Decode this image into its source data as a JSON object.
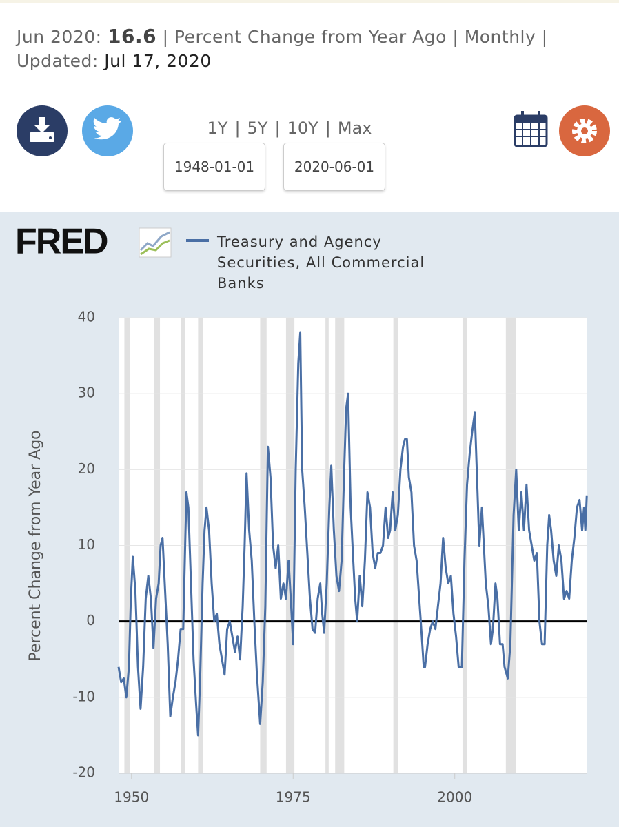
{
  "header": {
    "date_label": "Jun 2020:",
    "value": "16.6",
    "units": "| Percent Change from Year Ago | Monthly |",
    "updated_label": "Updated:",
    "updated": "Jul 17, 2020"
  },
  "range_links": [
    "1Y",
    "5Y",
    "10Y",
    "Max"
  ],
  "range_separator": "|",
  "start_date": "1948-01-01",
  "end_date": "2020-06-01",
  "logo": "FRED",
  "chart_data": {
    "type": "line",
    "y_label": "Percent Change from Year Ago",
    "x": [
      1948.0,
      1948.4,
      1948.8,
      1949.2,
      1949.6,
      1949.9,
      1950.2,
      1950.6,
      1951.0,
      1951.4,
      1951.8,
      1952.2,
      1952.6,
      1953.0,
      1953.4,
      1953.8,
      1954.2,
      1954.5,
      1954.8,
      1955.2,
      1955.6,
      1956.0,
      1956.4,
      1956.8,
      1957.2,
      1957.6,
      1958.0,
      1958.3,
      1958.5,
      1958.8,
      1959.2,
      1959.6,
      1960.0,
      1960.3,
      1960.6,
      1961.0,
      1961.3,
      1961.6,
      1962.0,
      1962.4,
      1962.8,
      1963.2,
      1963.6,
      1964.0,
      1964.4,
      1964.8,
      1965.2,
      1965.6,
      1966.0,
      1966.4,
      1966.8,
      1967.2,
      1967.5,
      1967.8,
      1968.2,
      1968.6,
      1969.0,
      1969.4,
      1969.9,
      1970.3,
      1970.7,
      1971.1,
      1971.5,
      1971.9,
      1972.3,
      1972.7,
      1973.1,
      1973.5,
      1973.9,
      1974.3,
      1974.7,
      1975.0,
      1975.4,
      1975.8,
      1976.1,
      1976.4,
      1976.8,
      1977.2,
      1977.6,
      1978.0,
      1978.4,
      1978.8,
      1979.2,
      1979.5,
      1979.8,
      1980.2,
      1980.6,
      1980.9,
      1981.3,
      1981.7,
      1982.1,
      1982.5,
      1982.9,
      1983.2,
      1983.5,
      1983.9,
      1984.3,
      1984.6,
      1984.9,
      1985.3,
      1985.7,
      1986.1,
      1986.5,
      1986.9,
      1987.3,
      1987.7,
      1988.1,
      1988.5,
      1988.9,
      1989.3,
      1989.7,
      1990.0,
      1990.4,
      1990.8,
      1991.2,
      1991.6,
      1992.0,
      1992.3,
      1992.6,
      1992.9,
      1993.3,
      1993.7,
      1994.1,
      1994.5,
      1994.9,
      1995.2,
      1995.4,
      1995.8,
      1996.2,
      1996.6,
      1997.0,
      1997.4,
      1997.8,
      1998.2,
      1998.6,
      1999.0,
      1999.4,
      1999.8,
      2000.2,
      2000.6,
      2001.1,
      2001.5,
      2001.9,
      2002.3,
      2002.7,
      2003.1,
      2003.4,
      2003.8,
      2004.2,
      2004.8,
      2005.2,
      2005.6,
      2005.9,
      2006.3,
      2006.6,
      2007.0,
      2007.4,
      2007.7,
      2008.2,
      2008.6,
      2009.1,
      2009.5,
      2009.9,
      2010.3,
      2010.7,
      2011.1,
      2011.5,
      2011.9,
      2012.3,
      2012.7,
      2013.1,
      2013.5,
      2013.9,
      2014.3,
      2014.6,
      2014.9,
      2015.3,
      2015.7,
      2016.1,
      2016.5,
      2016.9,
      2017.3,
      2017.7,
      2018.1,
      2018.5,
      2018.9,
      2019.3,
      2019.7,
      2020.0,
      2020.2,
      2020.42
    ],
    "series": [
      {
        "name": "Treasury and Agency Securities, All Commercial Banks",
        "color": "#4a6fa5",
        "values": [
          -6,
          -8,
          -7.5,
          -10,
          -6,
          3,
          8.5,
          4,
          -6,
          -11.5,
          -6,
          3,
          6,
          3,
          -3.5,
          3,
          5,
          10,
          11,
          4,
          -3,
          -12.5,
          -10,
          -8,
          -5,
          -1,
          -1,
          10,
          17,
          15,
          5,
          -5,
          -11,
          -15,
          -8,
          5,
          12,
          15,
          12,
          5,
          0,
          1,
          -3,
          -5,
          -7,
          -1,
          0,
          -2,
          -4,
          -2,
          -5,
          2,
          10,
          19.5,
          12,
          8,
          0,
          -7,
          -13.5,
          -8,
          2,
          23,
          19,
          10,
          7,
          10,
          3,
          5,
          3,
          8,
          2,
          -3,
          20,
          34,
          38,
          20,
          15,
          9,
          3,
          -1,
          -1.5,
          3,
          5,
          1,
          -1.5,
          5,
          15,
          20.5,
          12,
          6,
          4,
          8,
          20,
          28,
          30,
          15,
          8,
          3,
          0,
          6,
          2,
          8,
          17,
          15,
          9,
          7,
          9,
          9,
          10,
          15,
          11,
          12,
          17,
          12,
          14,
          20,
          23,
          24,
          24,
          19,
          17,
          10,
          8,
          3,
          -2,
          -6,
          -6,
          -3,
          -1,
          0,
          -1,
          2,
          5,
          11,
          7,
          5,
          6,
          1,
          -2,
          -6,
          -6,
          8,
          18,
          22,
          25,
          27.5,
          20,
          10,
          15,
          5,
          2,
          -3,
          -1,
          5,
          3,
          -3,
          -3,
          -6,
          -7.5,
          -3,
          14,
          20,
          12,
          17,
          12,
          18,
          12,
          10,
          8,
          9,
          0,
          -3,
          -3,
          10,
          14,
          12,
          8,
          6,
          10,
          8,
          3,
          4,
          3,
          8,
          11,
          15,
          16,
          12,
          15,
          12,
          16.6
        ]
      }
    ],
    "recessions": [
      [
        1948.9,
        1949.8
      ],
      [
        1953.5,
        1954.4
      ],
      [
        1957.6,
        1958.3
      ],
      [
        1960.3,
        1961.1
      ],
      [
        1969.9,
        1970.9
      ],
      [
        1973.9,
        1975.2
      ],
      [
        1980.0,
        1980.5
      ],
      [
        1981.5,
        1982.9
      ],
      [
        1990.5,
        1991.2
      ],
      [
        2001.2,
        2001.9
      ],
      [
        2007.9,
        2009.5
      ]
    ],
    "recession_color": "#e1e1e1",
    "xlim": [
      1948,
      2020.5
    ],
    "xticks": [
      1950,
      1975,
      2000
    ],
    "ylim": [
      -20,
      40
    ],
    "yticks": [
      -20,
      -10,
      0,
      10,
      20,
      30,
      40
    ],
    "grid": true,
    "zero_line": true
  }
}
